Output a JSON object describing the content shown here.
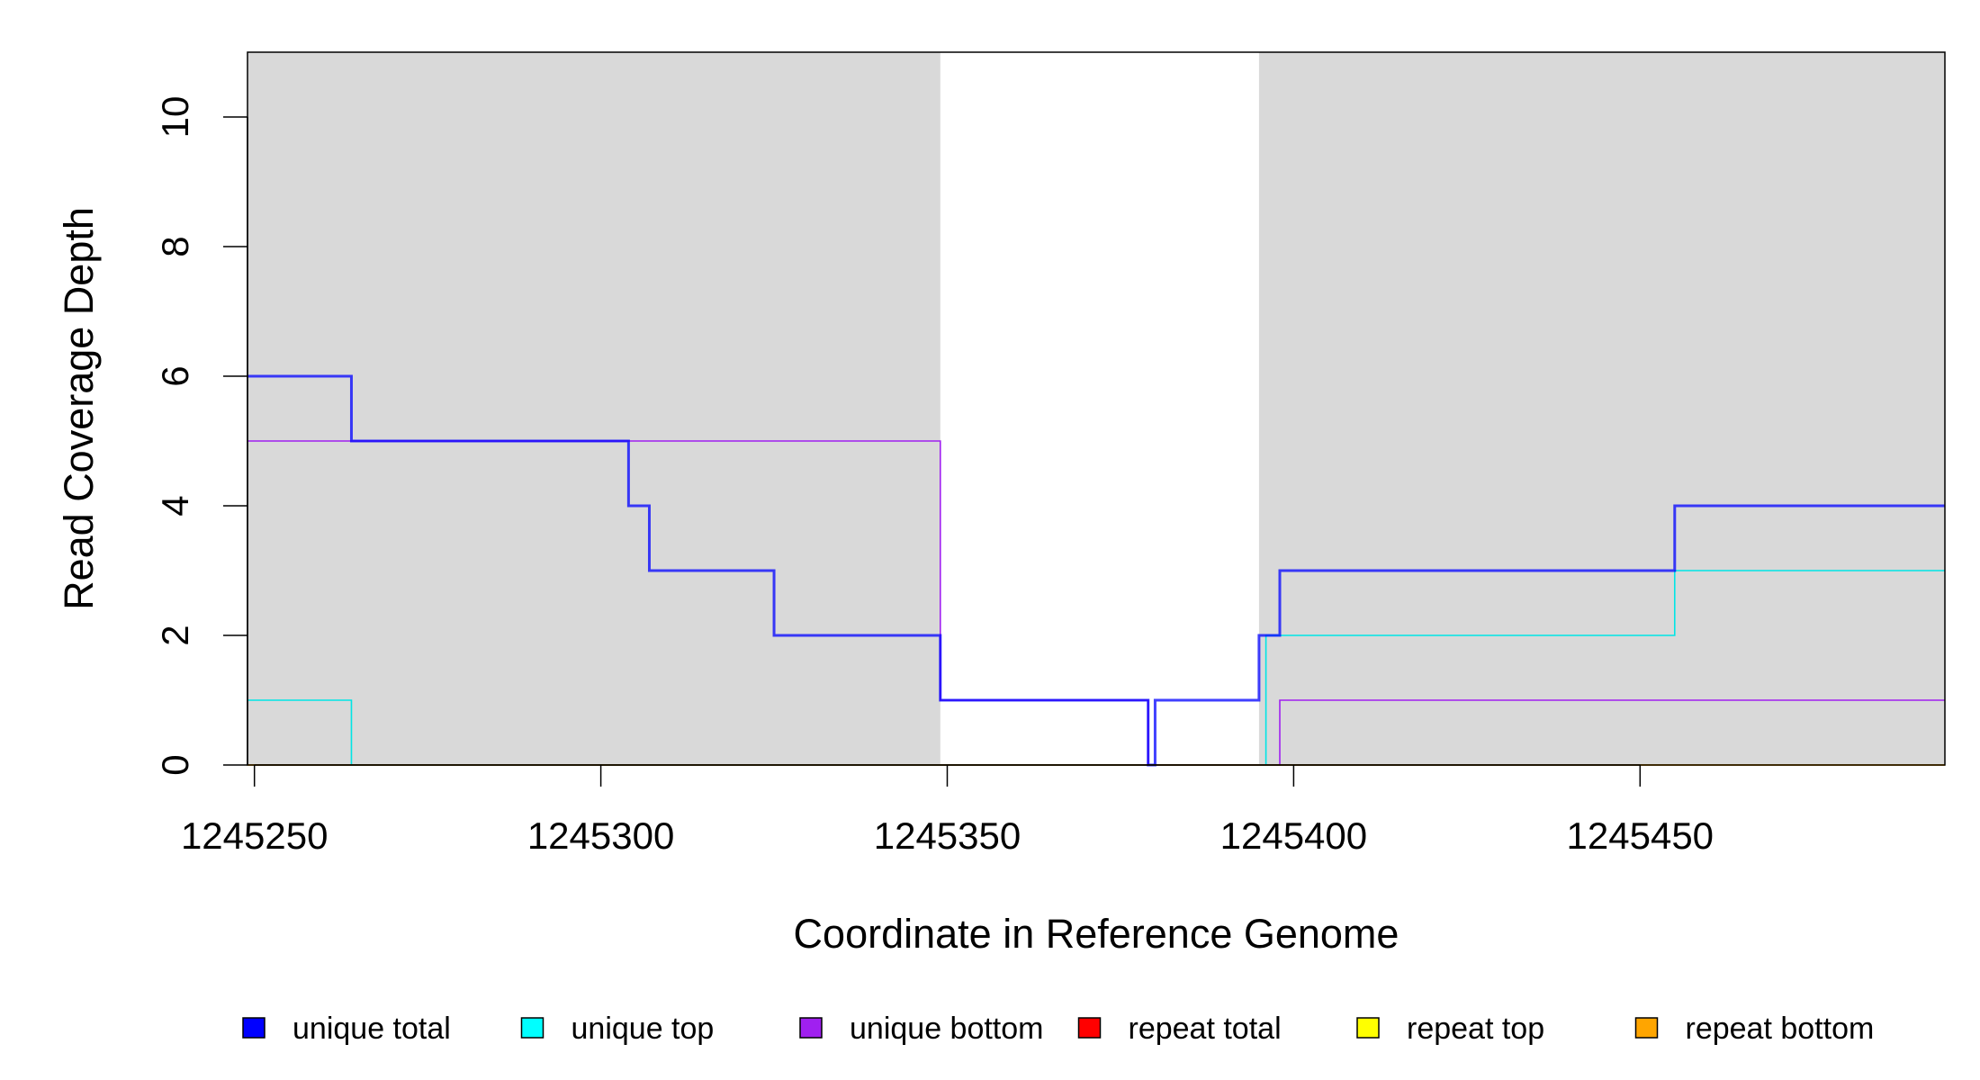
{
  "chart_data": {
    "type": "line",
    "xlabel": "Coordinate in Reference Genome",
    "ylabel": "Read Coverage Depth",
    "xlim": [
      1245249,
      1245494
    ],
    "ylim": [
      0,
      11
    ],
    "x_ticks": [
      1245250,
      1245300,
      1245350,
      1245400,
      1245450
    ],
    "y_ticks": [
      0,
      2,
      4,
      6,
      8,
      10
    ],
    "grid": false,
    "shaded_regions": [
      {
        "x0": 1245249,
        "x1": 1245349,
        "color": "#d9d9d9"
      },
      {
        "x0": 1245395,
        "x1": 1245494,
        "color": "#d9d9d9"
      }
    ],
    "series": [
      {
        "name": "unique top",
        "color": "#00e5e5",
        "step_x": [
          1245249,
          1245264,
          1245349,
          1245396,
          1245455,
          1245494
        ],
        "step_y": [
          1,
          0,
          0,
          2,
          3
        ]
      },
      {
        "name": "unique bottom",
        "color": "#a020f0",
        "step_x": [
          1245249,
          1245264,
          1245349,
          1245379,
          1245398,
          1245494
        ],
        "step_y": [
          5,
          5,
          1,
          0,
          1
        ]
      },
      {
        "name": "repeat total",
        "color": "#ff0000",
        "step_x": [
          1245249,
          1245494
        ],
        "step_y": [
          0
        ]
      },
      {
        "name": "repeat top",
        "color": "#ffff00",
        "step_x": [
          1245249,
          1245494
        ],
        "step_y": [
          0
        ]
      },
      {
        "name": "repeat bottom",
        "color": "#ffa500",
        "step_x": [
          1245249,
          1245494
        ],
        "step_y": [
          0
        ]
      },
      {
        "name": "unique total",
        "color": "#0000ff",
        "step_x": [
          1245249,
          1245264,
          1245304,
          1245307,
          1245325,
          1245349,
          1245379,
          1245380,
          1245395,
          1245398,
          1245455,
          1245494
        ],
        "step_y": [
          6,
          5,
          4,
          3,
          2,
          1,
          0,
          1,
          2,
          3,
          4
        ]
      }
    ],
    "legend": {
      "placement": "bottom",
      "items": [
        {
          "label": "unique total",
          "color": "#0000ff"
        },
        {
          "label": "unique top",
          "color": "#00ffff"
        },
        {
          "label": "unique bottom",
          "color": "#a020f0"
        },
        {
          "label": "repeat total",
          "color": "#ff0000"
        },
        {
          "label": "repeat top",
          "color": "#ffff00"
        },
        {
          "label": "repeat bottom",
          "color": "#ffa500"
        }
      ]
    }
  }
}
